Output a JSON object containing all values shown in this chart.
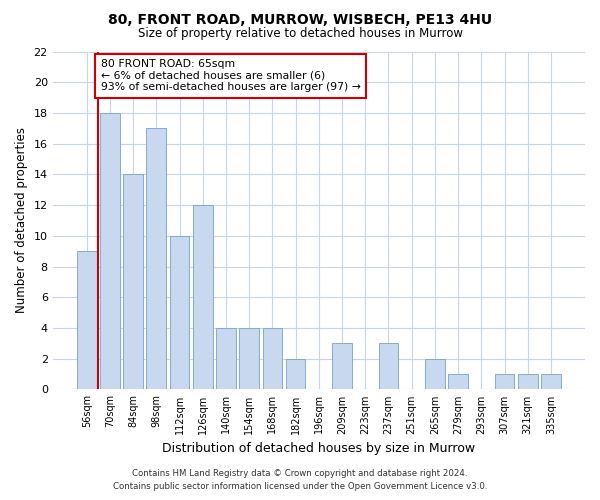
{
  "title": "80, FRONT ROAD, MURROW, WISBECH, PE13 4HU",
  "subtitle": "Size of property relative to detached houses in Murrow",
  "xlabel": "Distribution of detached houses by size in Murrow",
  "ylabel": "Number of detached properties",
  "categories": [
    "56sqm",
    "70sqm",
    "84sqm",
    "98sqm",
    "112sqm",
    "126sqm",
    "140sqm",
    "154sqm",
    "168sqm",
    "182sqm",
    "196sqm",
    "209sqm",
    "223sqm",
    "237sqm",
    "251sqm",
    "265sqm",
    "279sqm",
    "293sqm",
    "307sqm",
    "321sqm",
    "335sqm"
  ],
  "values": [
    9,
    18,
    14,
    17,
    10,
    12,
    4,
    4,
    4,
    2,
    0,
    3,
    0,
    3,
    0,
    2,
    1,
    0,
    1,
    1,
    1
  ],
  "bar_color": "#c8d8ef",
  "bar_edge_color": "#7aa0cc",
  "ylim": [
    0,
    22
  ],
  "yticks": [
    0,
    2,
    4,
    6,
    8,
    10,
    12,
    14,
    16,
    18,
    20,
    22
  ],
  "annotation_box_text": "80 FRONT ROAD: 65sqm\n← 6% of detached houses are smaller (6)\n93% of semi-detached houses are larger (97) →",
  "annotation_box_color": "#cc0000",
  "background_color": "#ffffff",
  "plot_bg_color": "#ffffff",
  "grid_color": "#c8d4e8",
  "footer_line1": "Contains HM Land Registry data © Crown copyright and database right 2024.",
  "footer_line2": "Contains public sector information licensed under the Open Government Licence v3.0."
}
